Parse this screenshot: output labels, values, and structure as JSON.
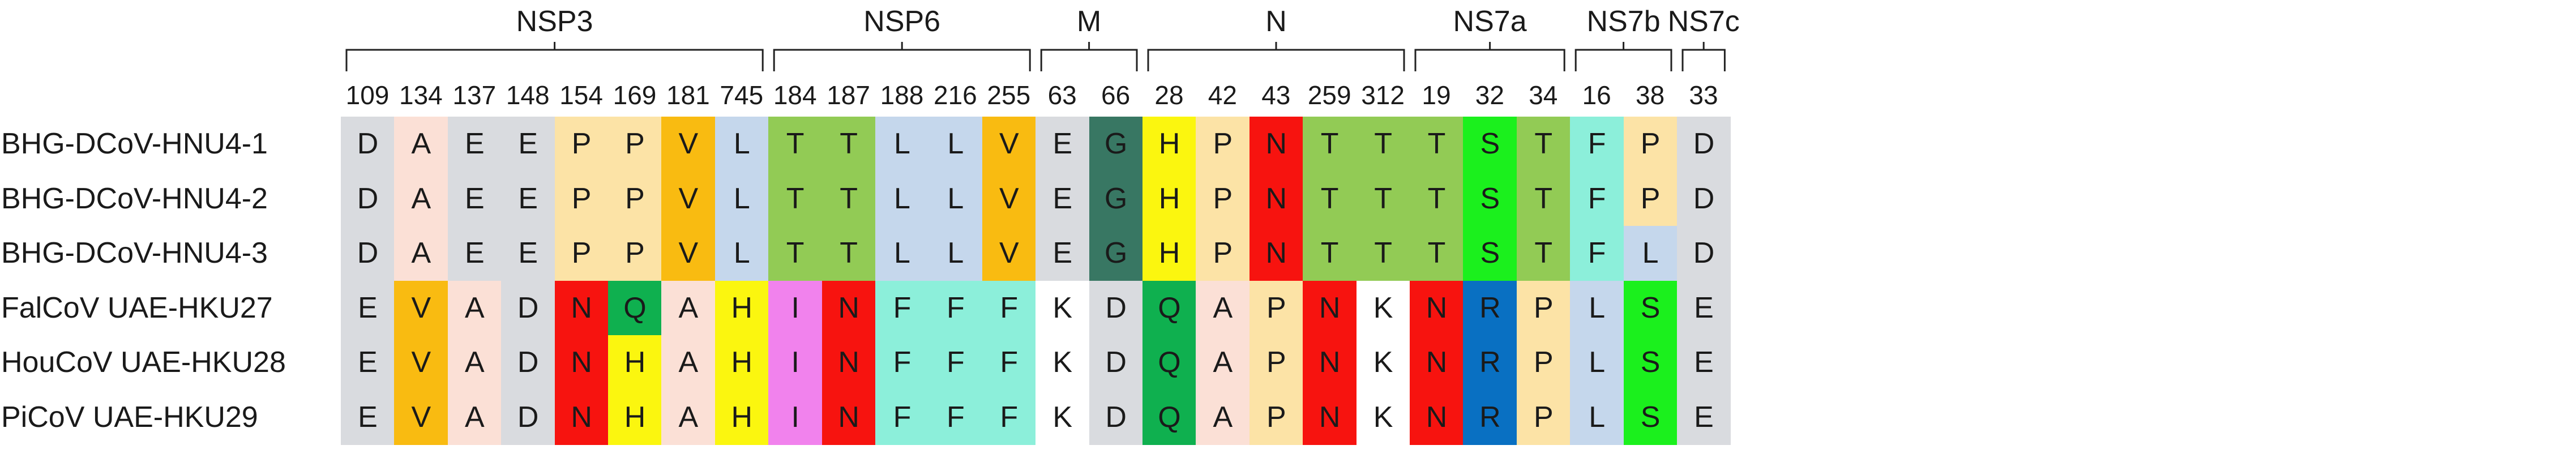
{
  "groups": [
    {
      "name": "NSP3",
      "start": 0,
      "end": 7
    },
    {
      "name": "NSP6",
      "start": 8,
      "end": 12
    },
    {
      "name": "M",
      "start": 13,
      "end": 14
    },
    {
      "name": "N",
      "start": 15,
      "end": 19
    },
    {
      "name": "NS7a",
      "start": 20,
      "end": 22
    },
    {
      "name": "NS7b",
      "start": 23,
      "end": 24
    },
    {
      "name": "NS7c",
      "start": 25,
      "end": 25
    }
  ],
  "positions": [
    "109",
    "134",
    "137",
    "148",
    "154",
    "169",
    "181",
    "745",
    "184",
    "187",
    "188",
    "216",
    "255",
    "63",
    "66",
    "28",
    "42",
    "43",
    "259",
    "312",
    "19",
    "32",
    "34",
    "16",
    "38",
    "33"
  ],
  "colors": {
    "D": "#d9dbdf",
    "E": "#d9dbdf",
    "A": "#fbe0d6",
    "P": "#fce3a6",
    "V": "#f9bb11",
    "L": "#c5d7ec",
    "T": "#92cb55",
    "G": "#387763",
    "H": "#fbf60f",
    "N": "#f7130f",
    "S": "#1bf01d",
    "F": "#8cefda",
    "Q": "#0fb04f",
    "I": "#f182ed",
    "K": "#ffffff",
    "R": "#0970c2"
  },
  "sequences": [
    {
      "name": "BHG-DCoV-HNU4-1",
      "residues": [
        "D",
        "A",
        "E",
        "E",
        "P",
        "P",
        "V",
        "L",
        "T",
        "T",
        "L",
        "L",
        "V",
        "E",
        "G",
        "H",
        "P",
        "N",
        "T",
        "T",
        "T",
        "S",
        "T",
        "F",
        "P",
        "D"
      ]
    },
    {
      "name": "BHG-DCoV-HNU4-2",
      "residues": [
        "D",
        "A",
        "E",
        "E",
        "P",
        "P",
        "V",
        "L",
        "T",
        "T",
        "L",
        "L",
        "V",
        "E",
        "G",
        "H",
        "P",
        "N",
        "T",
        "T",
        "T",
        "S",
        "T",
        "F",
        "P",
        "D"
      ]
    },
    {
      "name": "BHG-DCoV-HNU4-3",
      "residues": [
        "D",
        "A",
        "E",
        "E",
        "P",
        "P",
        "V",
        "L",
        "T",
        "T",
        "L",
        "L",
        "V",
        "E",
        "G",
        "H",
        "P",
        "N",
        "T",
        "T",
        "T",
        "S",
        "T",
        "F",
        "L",
        "D"
      ]
    },
    {
      "name": "FalCoV UAE-HKU27",
      "residues": [
        "E",
        "V",
        "A",
        "D",
        "N",
        "Q",
        "A",
        "H",
        "I",
        "N",
        "F",
        "F",
        "F",
        "K",
        "D",
        "Q",
        "A",
        "P",
        "N",
        "K",
        "N",
        "R",
        "P",
        "L",
        "S",
        "E"
      ]
    },
    {
      "name": "HouCoV UAE-HKU28",
      "residues": [
        "E",
        "V",
        "A",
        "D",
        "N",
        "H",
        "A",
        "H",
        "I",
        "N",
        "F",
        "F",
        "F",
        "K",
        "D",
        "Q",
        "A",
        "P",
        "N",
        "K",
        "N",
        "R",
        "P",
        "L",
        "S",
        "E"
      ]
    },
    {
      "name": "PiCoV UAE-HKU29",
      "residues": [
        "E",
        "V",
        "A",
        "D",
        "N",
        "H",
        "A",
        "H",
        "I",
        "N",
        "F",
        "F",
        "F",
        "K",
        "D",
        "Q",
        "A",
        "P",
        "N",
        "K",
        "N",
        "R",
        "P",
        "L",
        "S",
        "E"
      ]
    }
  ]
}
